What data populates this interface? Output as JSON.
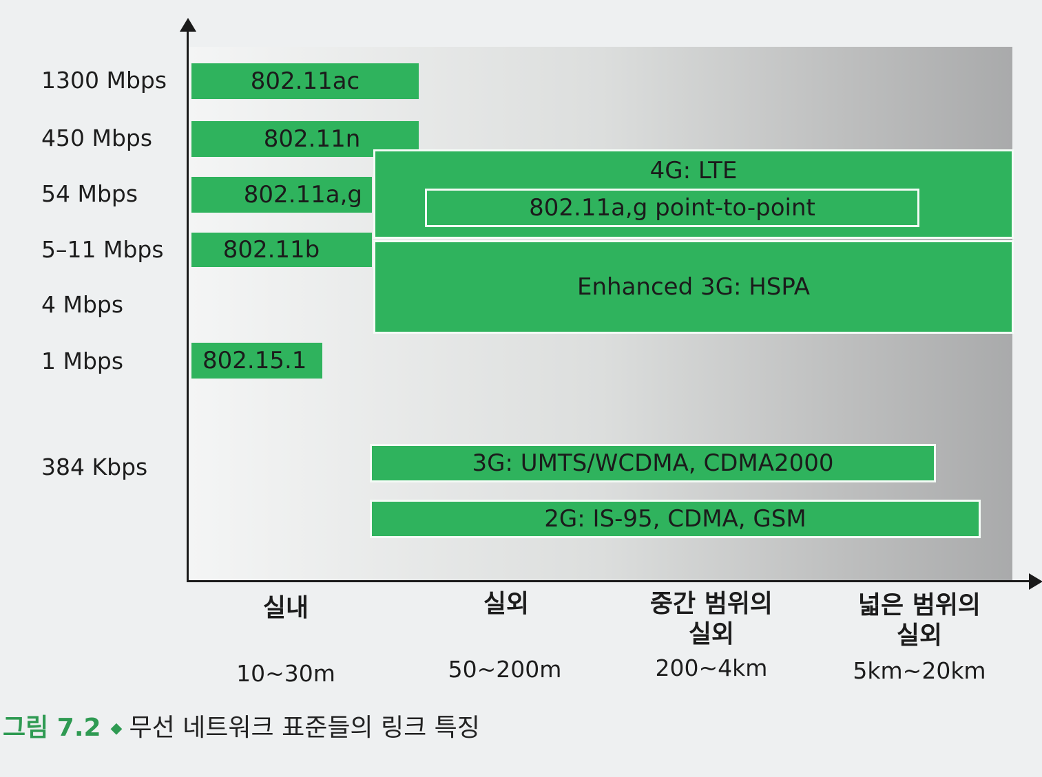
{
  "y_axis_labels": [
    "1300 Mbps",
    "450 Mbps",
    "54 Mbps",
    "5–11 Mbps",
    "4 Mbps",
    "1 Mbps",
    "384 Kbps"
  ],
  "x_axis_categories": [
    {
      "name": "실내",
      "range": "10~30m"
    },
    {
      "name": "실외",
      "range": "50~200m"
    },
    {
      "name": "중간 범위의\n실외",
      "range": "200~4km"
    },
    {
      "name": "넓은 범위의\n실외",
      "range": "5km~20km"
    }
  ],
  "standards": {
    "s_80211ac": "802.11ac",
    "s_80211n": "802.11n",
    "s_80211ag": "802.11a,g",
    "s_80211b": "802.11b",
    "s_802151": "802.15.1",
    "s_4g_lte": "4G: LTE",
    "s_80211ag_p2p": "802.11a,g point-to-point",
    "s_3g_hspa": "Enhanced 3G: HSPA",
    "s_3g_umts": "3G: UMTS/WCDMA, CDMA2000",
    "s_2g": "2G: IS-95, CDMA, GSM"
  },
  "caption": {
    "figure_number": "그림 7.2",
    "bullet": "◆",
    "title": "무선 네트워크 표준들의 링크 특징"
  },
  "colors": {
    "bar_fill": "#2fb35d",
    "caption_accent": "#2e9a52",
    "axis": "#1a1a1a"
  }
}
